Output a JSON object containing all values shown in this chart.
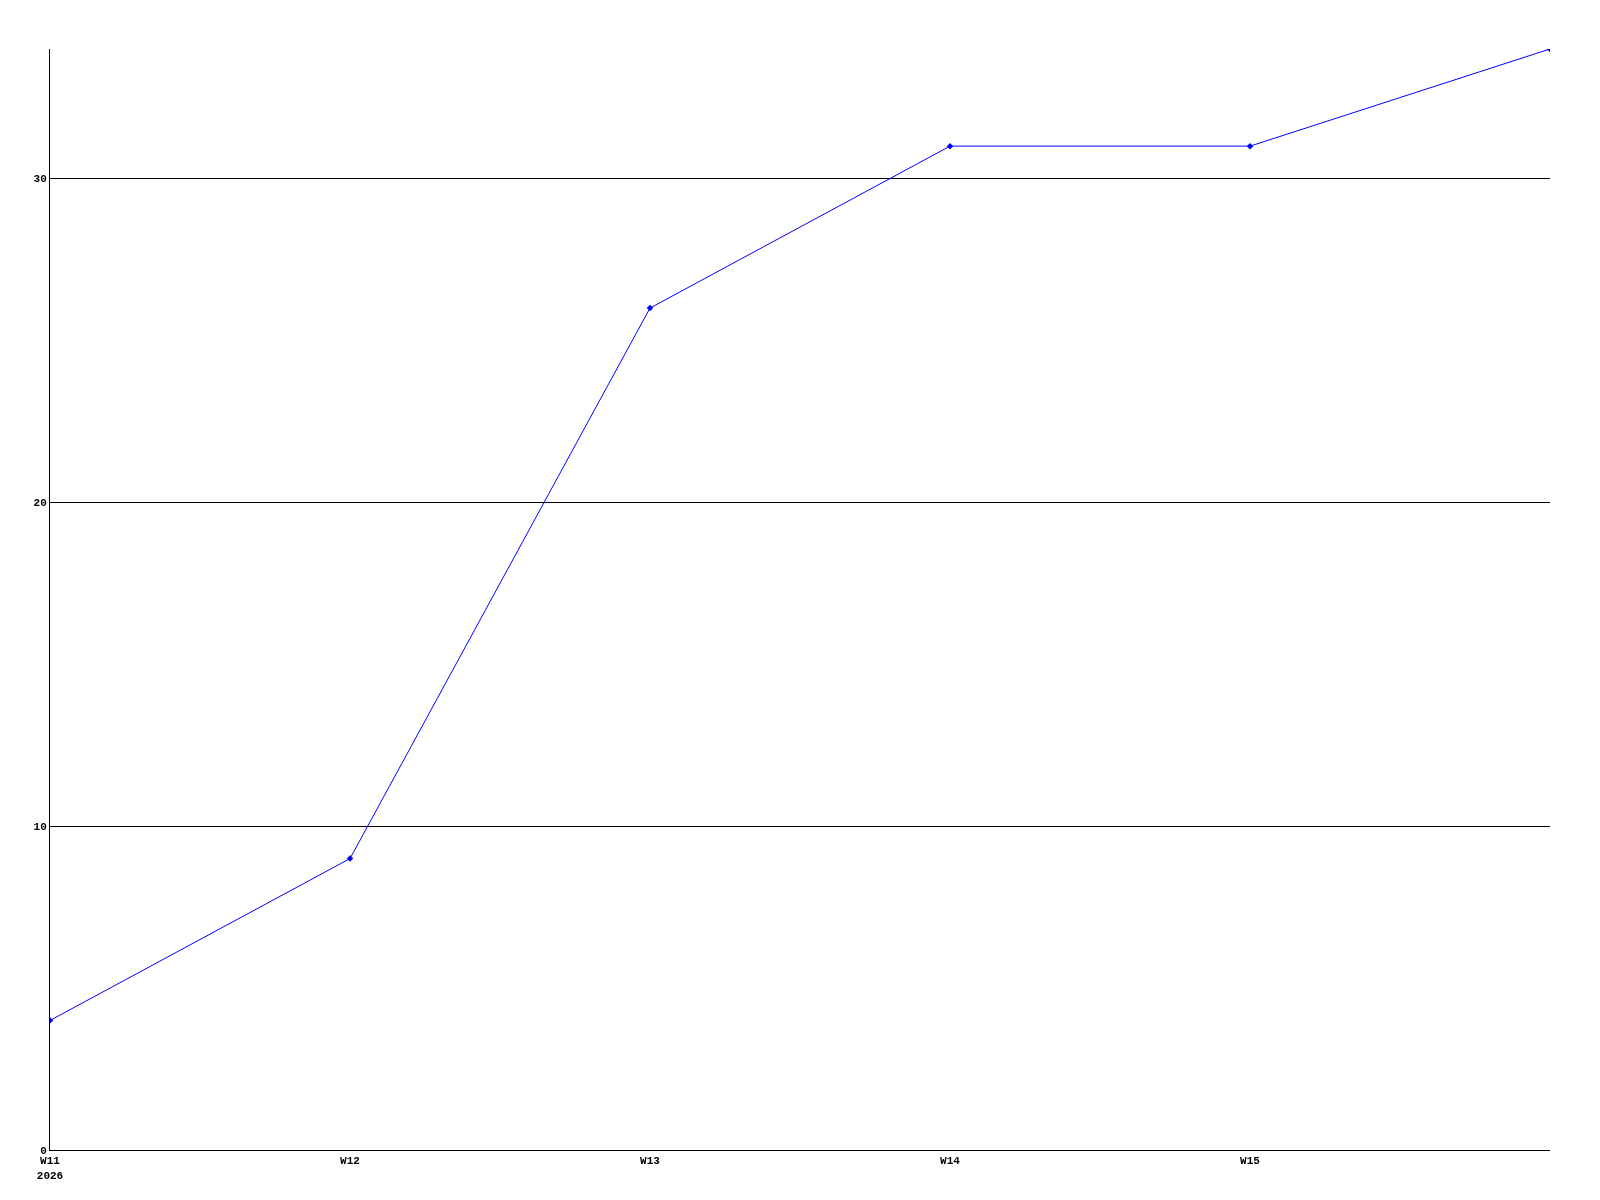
{
  "chart_data": {
    "type": "line",
    "categories": [
      "W11\n2026",
      "W12",
      "W13",
      "W14",
      "W15",
      null
    ],
    "series": [
      {
        "color": "#0000ff",
        "values": [
          4,
          9,
          26,
          31,
          31,
          34
        ]
      }
    ],
    "ylim": [
      0,
      34
    ],
    "yticks": [
      0,
      10,
      20,
      30
    ],
    "grid": "y",
    "marker": "diamond",
    "line_style": "solid"
  }
}
